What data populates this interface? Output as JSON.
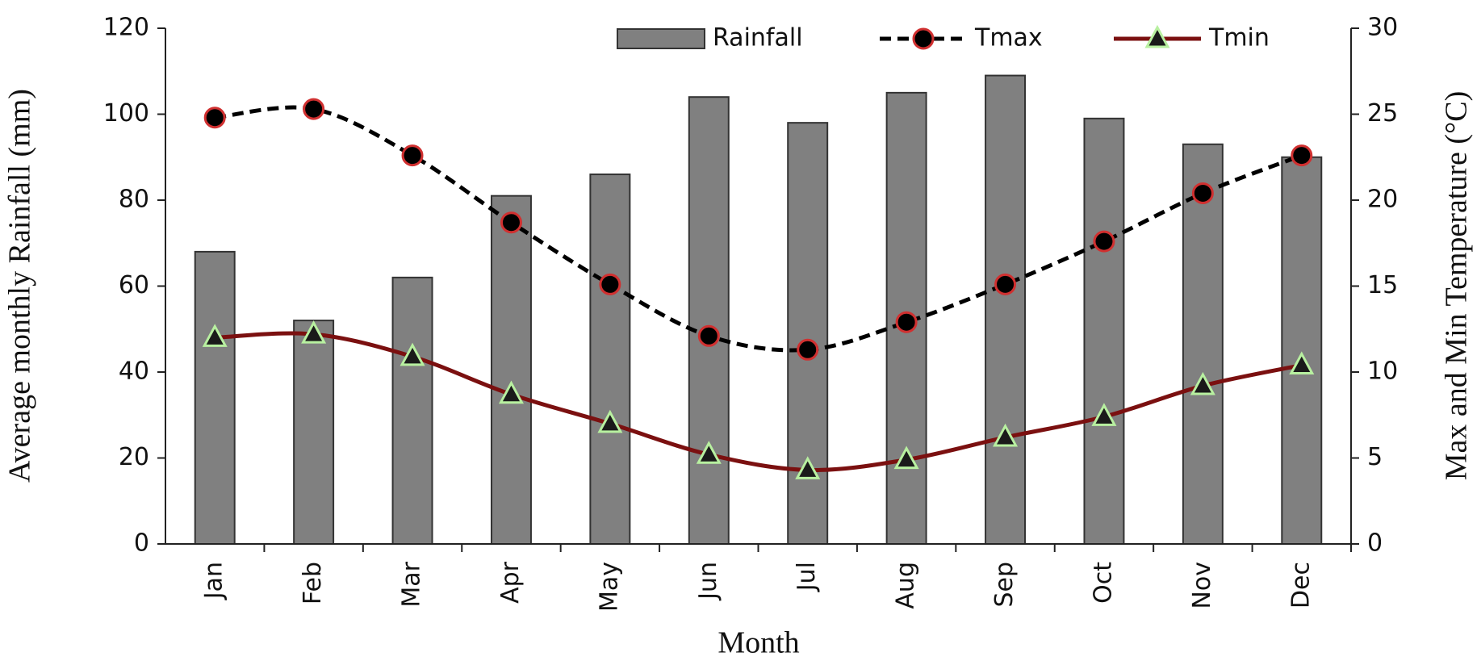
{
  "chart_data": {
    "type": "bar-line",
    "x_label": "Month",
    "y_label": "Average monthly Rainfall (mm)",
    "y2_label": "Max and Min Temperature (°C)",
    "categories": [
      "Jan",
      "Feb",
      "Mar",
      "Apr",
      "May",
      "Jun",
      "Jul",
      "Aug",
      "Sep",
      "Oct",
      "Nov",
      "Dec"
    ],
    "series": [
      {
        "name": "Rainfall",
        "type": "bar",
        "color": "#808080",
        "values": [
          68,
          52,
          62,
          81,
          86,
          104,
          98,
          105,
          109,
          99,
          93,
          90
        ]
      },
      {
        "name": "Tmax",
        "type": "line",
        "axis": "y2",
        "color": "#000000",
        "marker_color": "#d03030",
        "dashed": true,
        "marker": "circle",
        "values": [
          24.8,
          25.3,
          22.6,
          18.7,
          15.1,
          12.1,
          11.3,
          12.9,
          15.1,
          17.6,
          20.4,
          22.6
        ]
      },
      {
        "name": "Tmin",
        "type": "line",
        "axis": "y2",
        "color": "#7b1010",
        "marker_color": "#b8f0a0",
        "dashed": false,
        "marker": "triangle",
        "values": [
          12.0,
          12.2,
          10.9,
          8.7,
          7.0,
          5.2,
          4.3,
          4.9,
          6.2,
          7.4,
          9.2,
          10.4
        ]
      }
    ],
    "ylim": [
      0,
      120
    ],
    "yticks": [
      0,
      20,
      40,
      60,
      80,
      100,
      120
    ],
    "y2lim": [
      0,
      30
    ],
    "y2ticks": [
      0,
      5,
      10,
      15,
      20,
      25,
      30
    ],
    "grid": false,
    "legend": "top"
  }
}
